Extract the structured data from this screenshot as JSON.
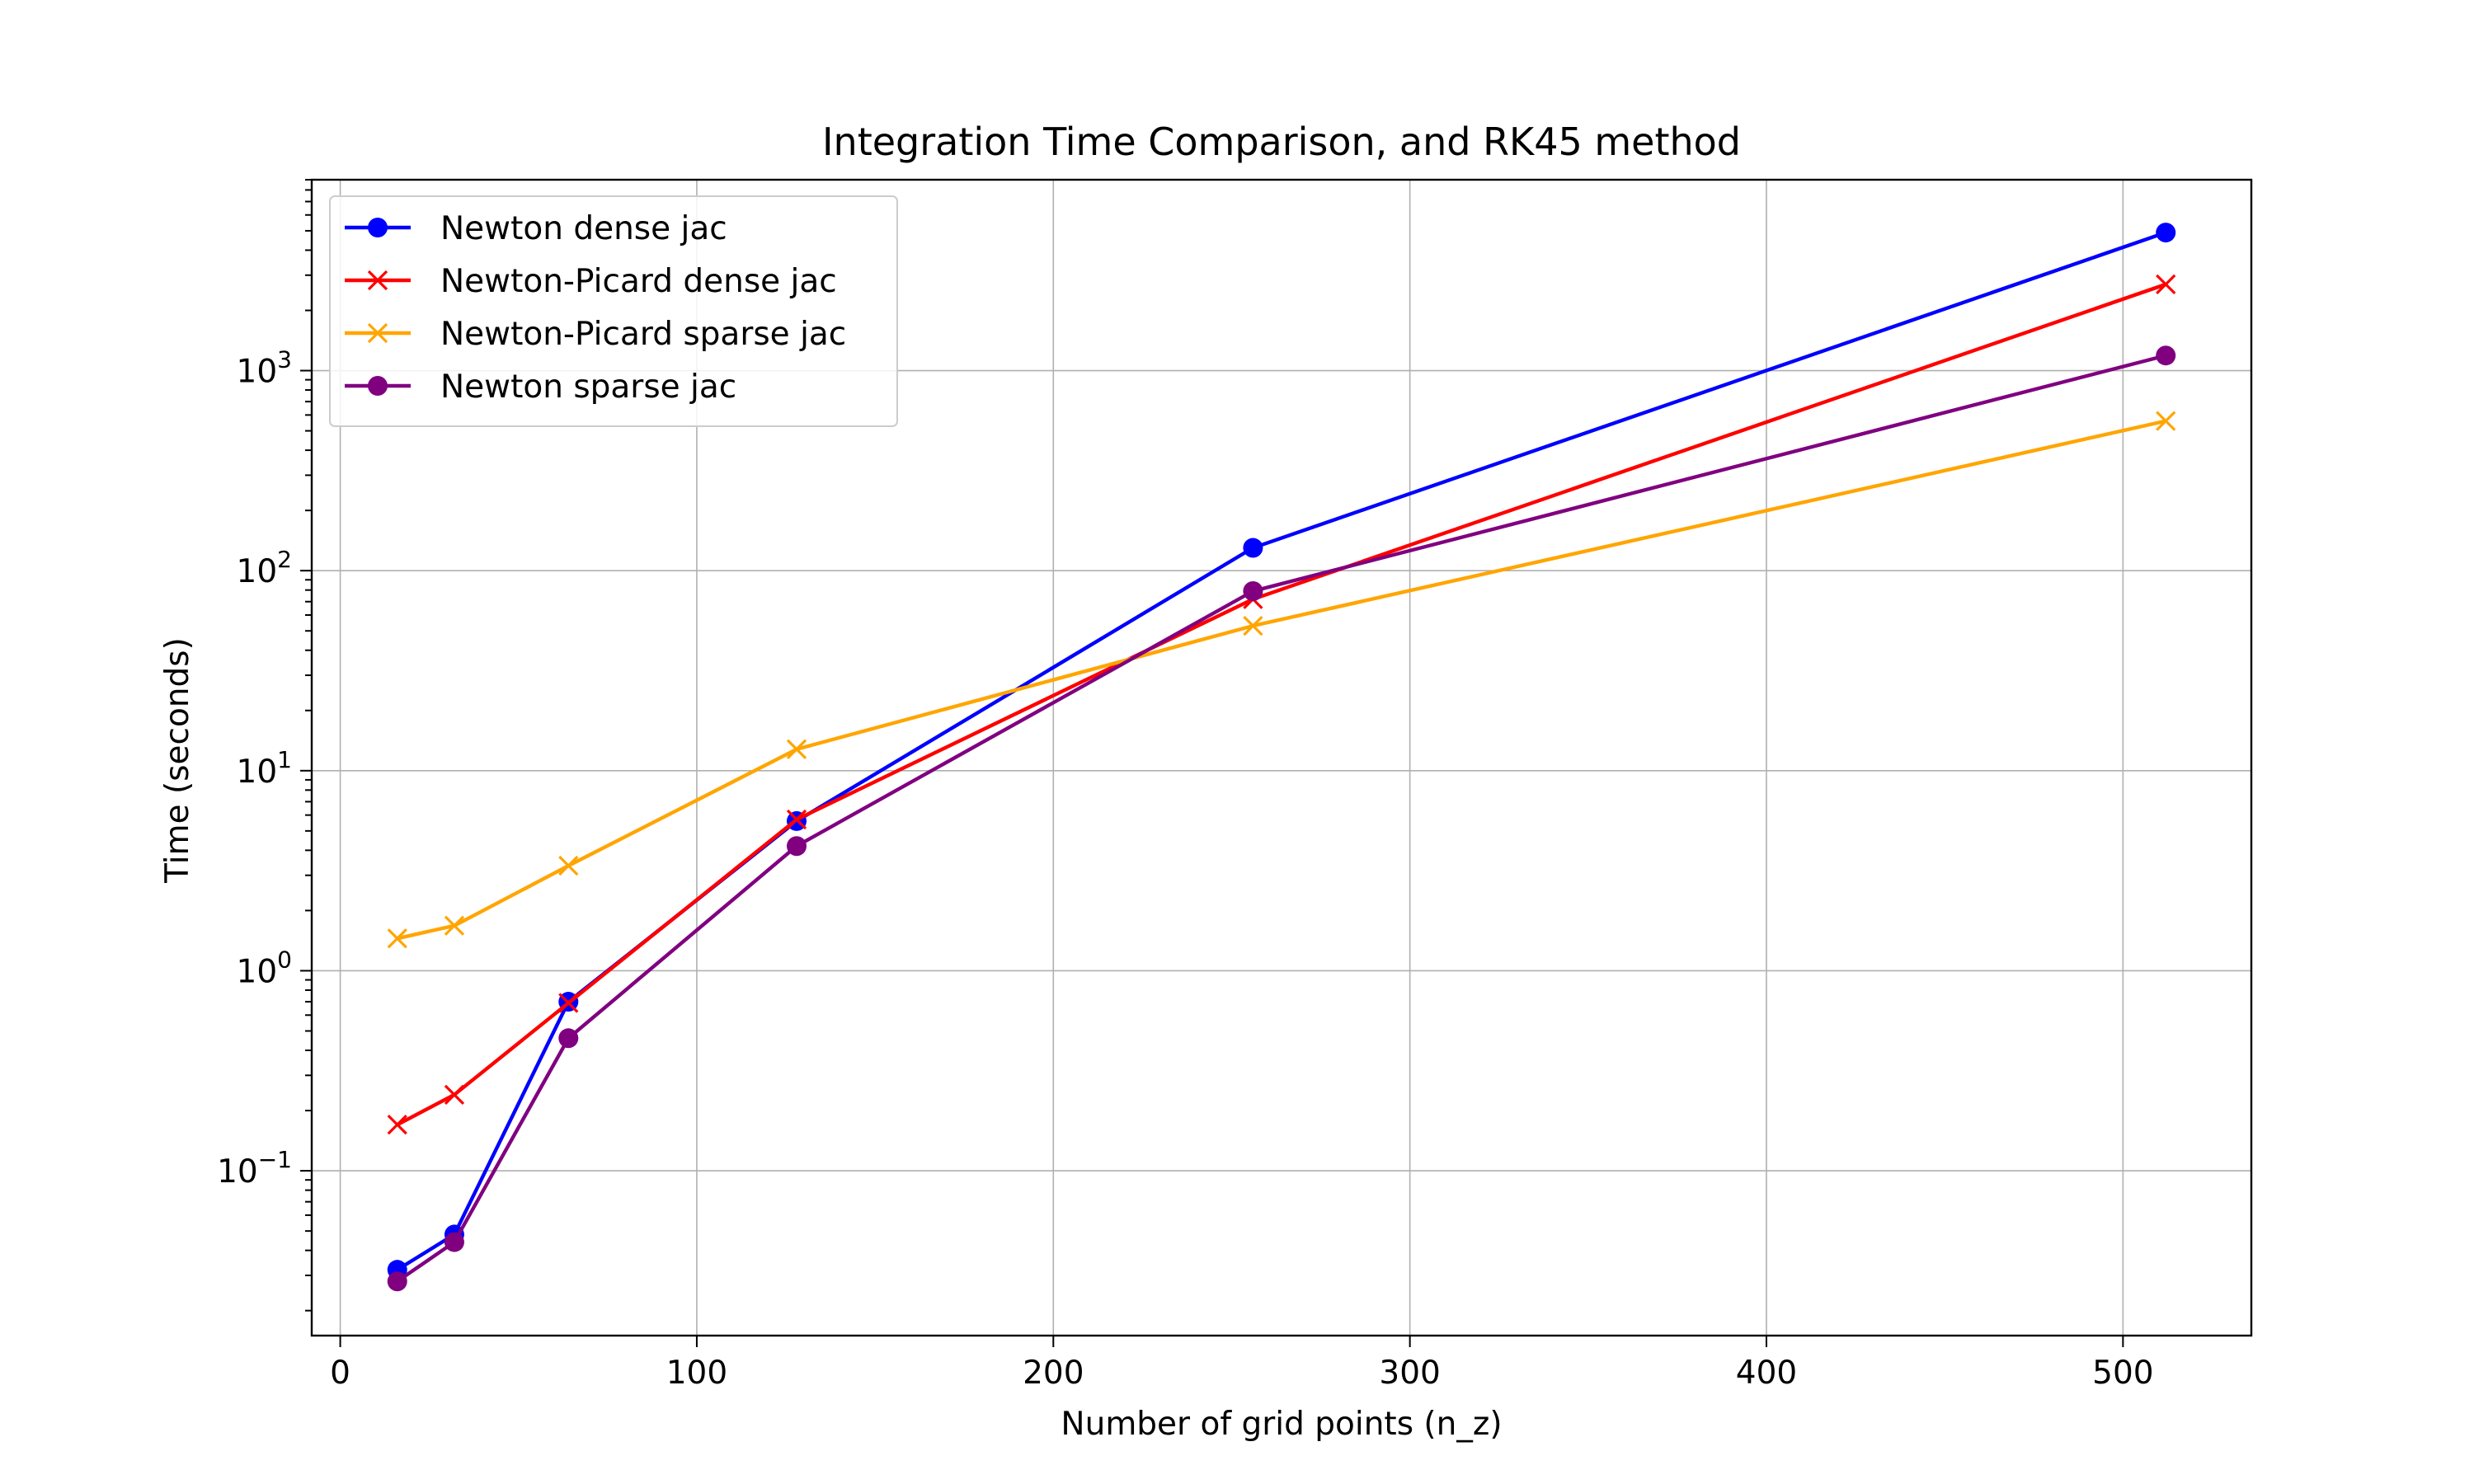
{
  "chart_data": {
    "type": "line",
    "title": "Integration Time Comparison, and RK45 method",
    "xlabel": "Number of grid points (n_z)",
    "ylabel": "Time (seconds)",
    "xlim": [
      -8,
      536
    ],
    "ylim": [
      0.015,
      9000
    ],
    "yscale": "log",
    "grid": true,
    "legend_position": "top-left",
    "x_ticks": [
      {
        "value": 0,
        "label": "0"
      },
      {
        "value": 100,
        "label": "100"
      },
      {
        "value": 200,
        "label": "200"
      },
      {
        "value": 300,
        "label": "300"
      },
      {
        "value": 400,
        "label": "400"
      },
      {
        "value": 500,
        "label": "500"
      }
    ],
    "y_ticks": [
      {
        "value": 0.1,
        "mantissa": "10",
        "exponent": "−1"
      },
      {
        "value": 1,
        "mantissa": "10",
        "exponent": "0"
      },
      {
        "value": 10,
        "mantissa": "10",
        "exponent": "1"
      },
      {
        "value": 100,
        "mantissa": "10",
        "exponent": "2"
      },
      {
        "value": 1000,
        "mantissa": "10",
        "exponent": "3"
      }
    ],
    "x": [
      16,
      32,
      64,
      128,
      256,
      512
    ],
    "series": [
      {
        "name": "Newton dense jac",
        "color": "#0000ff",
        "marker": "circle",
        "values": [
          0.032,
          0.048,
          0.7,
          5.6,
          130,
          4900
        ]
      },
      {
        "name": "Newton-Picard dense jac",
        "color": "#ff0000",
        "marker": "x",
        "values": [
          0.17,
          0.24,
          0.69,
          5.7,
          72,
          2700
        ]
      },
      {
        "name": "Newton-Picard sparse jac",
        "color": "#ffa500",
        "marker": "x",
        "values": [
          1.45,
          1.68,
          3.35,
          12.8,
          53,
          560
        ]
      },
      {
        "name": "Newton sparse jac",
        "color": "#800080",
        "marker": "circle",
        "values": [
          0.028,
          0.044,
          0.46,
          4.2,
          79,
          1190
        ]
      }
    ]
  }
}
